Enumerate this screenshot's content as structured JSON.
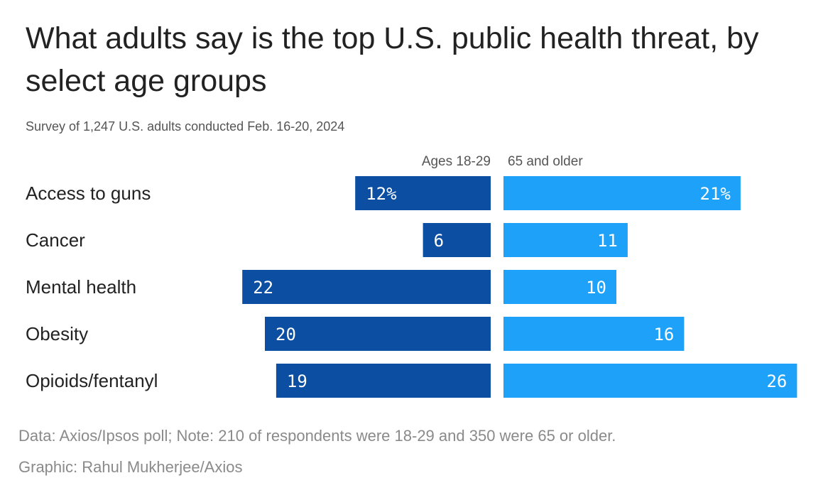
{
  "title": "What adults say is the top U.S. public health threat, by select age groups",
  "subtitle": "Survey of 1,247 U.S. adults conducted Feb. 16-20, 2024",
  "source_line": "Data: Axios/Ipsos poll; Note: 210 of respondents were 18-29 and 350 were 65 or older.",
  "credit_line": "Graphic: Rahul Mukherjee/Axios",
  "chart_data": {
    "type": "bar",
    "orientation": "horizontal-diverging",
    "categories": [
      "Access to guns",
      "Cancer",
      "Mental health",
      "Obesity",
      "Opioids/fentanyl"
    ],
    "series": [
      {
        "name": "Ages 18-29",
        "values": [
          12,
          6,
          22,
          20,
          19
        ],
        "labels": [
          "12%",
          "6",
          "22",
          "20",
          "19"
        ],
        "color": "#0b4ea2",
        "direction": "left"
      },
      {
        "name": "65 and older",
        "values": [
          21,
          11,
          10,
          16,
          26
        ],
        "labels": [
          "21%",
          "11",
          "10",
          "16",
          "26"
        ],
        "color": "#1ea1f8",
        "direction": "right"
      }
    ],
    "unit": "%",
    "grid": false,
    "legend": "column headers above bars"
  }
}
